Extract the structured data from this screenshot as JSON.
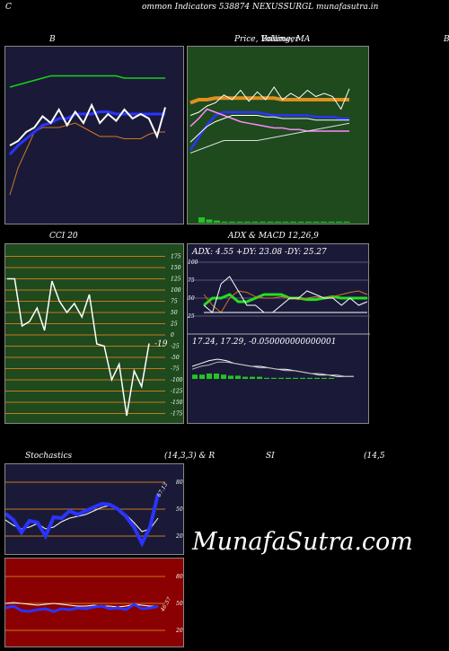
{
  "header": "ommon  Indicators 538874  NEXUSSURGL  munafasutra.in",
  "header_prefix": "C",
  "titles": {
    "bb": "B",
    "price": "Price,  Volume,  MA",
    "price_overlap": "Bollinger",
    "right_edge": "B",
    "cci": "CCI 20",
    "adx": "ADX  & MACD 12,26,9",
    "stoch": "Stochastics",
    "stoch_params": "(14,3,3) & R",
    "rsi": "SI",
    "rsi_params": "(14,5"
  },
  "adx_line": "ADX: 4.55  +DY: 23.08  -DY: 25.27",
  "macd_line": "17.24,  17.29,  -0.050000000000001",
  "cci_value": "-19",
  "stoch_value": "67.13",
  "rsi_value": "46.57",
  "watermark": "MunafaSutra.com",
  "colors": {
    "navy_bg": "#1a1a38",
    "green_bg": "#1e4a1e",
    "red_bg": "#8b0000",
    "orange_line": "#c8781a",
    "green_line": "#22c422"
  },
  "chart_data": [
    {
      "type": "line",
      "panel": "bollinger",
      "series": [
        {
          "values": [
            40,
            52,
            60,
            68,
            70,
            70,
            70,
            71,
            72,
            70,
            68,
            66,
            66,
            66,
            65,
            65,
            65,
            67,
            68,
            68
          ]
        },
        {
          "values": [
            58,
            62,
            65,
            68,
            71,
            72,
            74,
            74,
            76,
            76,
            76,
            77,
            77,
            76,
            76,
            76,
            76,
            76,
            76,
            76
          ]
        },
        {
          "values": [
            88,
            89,
            90,
            91,
            92,
            93,
            93,
            93,
            93,
            93,
            93,
            93,
            93,
            93,
            92,
            92,
            92,
            92,
            92,
            92
          ]
        },
        {
          "values": [
            62,
            64,
            68,
            70,
            75,
            72,
            78,
            71,
            77,
            72,
            80,
            72,
            76,
            73,
            78,
            74,
            76,
            74,
            66,
            79
          ]
        }
      ],
      "ylim": [
        30,
        100
      ]
    },
    {
      "type": "line",
      "panel": "price_volume_ma",
      "series": [
        {
          "values": [
            70,
            72,
            72,
            73,
            73,
            73,
            73,
            73,
            73,
            73,
            73,
            72,
            72,
            72,
            72,
            72,
            72,
            72,
            72,
            72
          ]
        },
        {
          "values": [
            40,
            48,
            56,
            62,
            64,
            64,
            64,
            64,
            64,
            63,
            62,
            62,
            62,
            62,
            62,
            61,
            61,
            61,
            60,
            60
          ]
        },
        {
          "values": [
            55,
            60,
            66,
            64,
            62,
            60,
            58,
            57,
            56,
            55,
            54,
            54,
            53,
            53,
            52,
            52,
            52,
            52,
            52,
            52
          ]
        },
        {
          "values": [
            45,
            50,
            55,
            58,
            60,
            62,
            62,
            62,
            62,
            61,
            61,
            60,
            60,
            60,
            60,
            59,
            59,
            59,
            59,
            59
          ]
        },
        {
          "values": [
            38,
            40,
            42,
            44,
            46,
            46,
            46,
            46,
            46,
            47,
            48,
            49,
            50,
            51,
            52,
            53,
            54,
            55,
            56,
            57
          ]
        },
        {
          "values": [
            62,
            64,
            68,
            70,
            75,
            72,
            78,
            71,
            77,
            72,
            80,
            72,
            76,
            73,
            78,
            74,
            76,
            74,
            66,
            79
          ]
        }
      ],
      "volume": [
        5,
        3,
        2,
        1,
        1,
        1,
        1,
        1,
        1,
        1,
        1,
        1,
        1,
        1,
        1,
        1,
        1,
        1,
        1,
        1
      ],
      "ylim": [
        0,
        100
      ]
    },
    {
      "type": "line",
      "panel": "cci",
      "ticks": [
        175,
        150,
        125,
        100,
        75,
        50,
        25,
        0,
        -25,
        -50,
        -75,
        -100,
        -125,
        -150,
        -175
      ],
      "series": [
        {
          "values": [
            125,
            125,
            20,
            30,
            60,
            10,
            120,
            75,
            50,
            70,
            40,
            90,
            -20,
            -25,
            -100,
            -65,
            -180,
            -80,
            -115,
            -19
          ]
        }
      ],
      "ylim": [
        -190,
        190
      ]
    },
    {
      "type": "line",
      "panel": "adx",
      "ticks": [
        100,
        75,
        50,
        25
      ],
      "series": [
        {
          "values": [
            40,
            50,
            50,
            55,
            45,
            45,
            50,
            55,
            55,
            55,
            50,
            50,
            48,
            48,
            50,
            52,
            50,
            50,
            50,
            50
          ]
        },
        {
          "values": [
            55,
            40,
            30,
            50,
            60,
            58,
            52,
            50,
            50,
            52,
            50,
            48,
            50,
            52,
            50,
            52,
            55,
            58,
            60,
            55
          ]
        },
        {
          "values": [
            40,
            30,
            70,
            80,
            60,
            40,
            40,
            30,
            30,
            40,
            50,
            50,
            60,
            55,
            50,
            50,
            40,
            50,
            40,
            45
          ]
        },
        {
          "values": [
            30,
            30,
            30,
            30,
            30,
            30,
            30,
            30,
            30,
            30,
            30,
            30,
            30,
            30,
            30,
            30,
            30,
            30,
            30,
            30
          ]
        }
      ],
      "ylim": [
        0,
        100
      ]
    },
    {
      "type": "line",
      "panel": "macd",
      "series": [
        {
          "values": [
            10,
            12,
            14,
            15,
            14,
            12,
            11,
            10,
            10,
            9,
            8,
            8,
            7,
            6,
            5,
            4,
            4,
            3,
            3,
            3
          ]
        },
        {
          "values": [
            8,
            10,
            11,
            13,
            13,
            12,
            11,
            10,
            9,
            9,
            8,
            7,
            7,
            6,
            5,
            5,
            4,
            4,
            3,
            3
          ]
        }
      ],
      "histogram": [
        4,
        4,
        5,
        5,
        4,
        3,
        3,
        2,
        2,
        2,
        1,
        1,
        1,
        1,
        1,
        1,
        1,
        1,
        1,
        1
      ],
      "ylim": [
        -5,
        20
      ]
    },
    {
      "type": "line",
      "panel": "stochastics",
      "ticks": [
        80,
        50,
        20
      ],
      "series": [
        {
          "values": [
            45,
            38,
            24,
            37,
            35,
            20,
            41,
            40,
            48,
            44,
            48,
            52,
            56,
            55,
            50,
            42,
            30,
            12,
            30,
            67.13
          ]
        },
        {
          "values": [
            38,
            32,
            28,
            30,
            34,
            28,
            30,
            36,
            40,
            42,
            44,
            48,
            52,
            54,
            50,
            44,
            35,
            25,
            28,
            40
          ]
        }
      ],
      "ylim": [
        0,
        100
      ]
    },
    {
      "type": "line",
      "panel": "rsi",
      "ticks": [
        80,
        50,
        20
      ],
      "series": [
        {
          "values": [
            45,
            47,
            42,
            41,
            43,
            44,
            41,
            44,
            43,
            45,
            44,
            46,
            47,
            44,
            45,
            43,
            49,
            44,
            45,
            46.57
          ]
        },
        {
          "values": [
            50,
            51,
            50,
            49,
            48,
            49,
            50,
            49,
            48,
            47,
            47,
            48,
            47,
            47,
            46,
            47,
            49,
            48,
            47,
            47
          ]
        }
      ],
      "ylim": [
        0,
        100
      ]
    }
  ]
}
